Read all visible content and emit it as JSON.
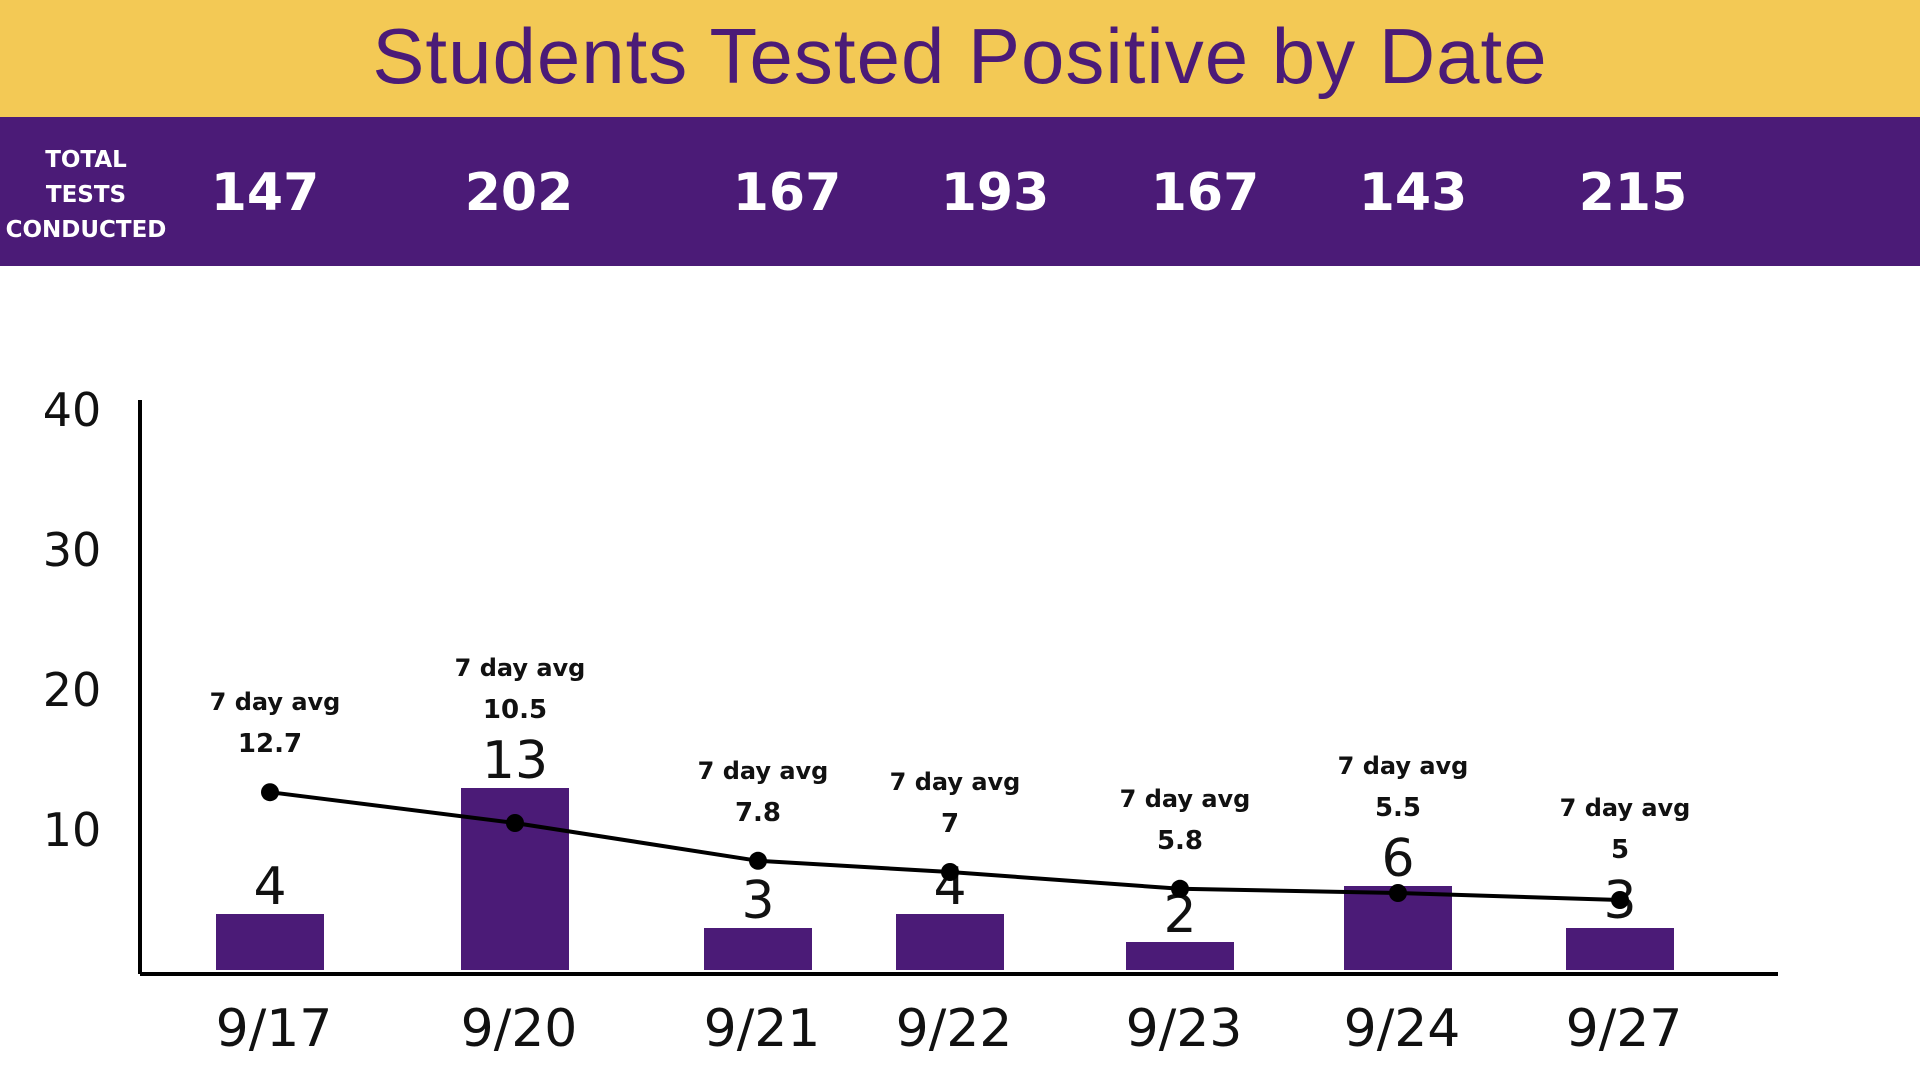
{
  "title": "Students Tested Positive by Date",
  "totals_label": [
    "TOTAL",
    "TESTS",
    "CONDUCTED"
  ],
  "totals": [
    "147",
    "202",
    "167",
    "193",
    "167",
    "143",
    "215"
  ],
  "avg_caption": "7 day avg",
  "colors": {
    "banner": "#F3C955",
    "band": "#4B1B77",
    "bar": "#4B1B77",
    "line": "#000000"
  },
  "chart_data": {
    "type": "bar",
    "categories": [
      "9/17",
      "9/20",
      "9/21",
      "9/22",
      "9/23",
      "9/24",
      "9/27"
    ],
    "series": [
      {
        "values": [
          4,
          13,
          3,
          4,
          2,
          6,
          3
        ]
      },
      {
        "values": [
          12.7,
          10.5,
          7.8,
          7,
          5.8,
          5.5,
          5
        ]
      }
    ],
    "value_labels": [
      "4",
      "13",
      "3",
      "4",
      "2",
      "6",
      "3"
    ],
    "avg_labels": [
      "12.7",
      "10.5",
      "7.8",
      "7",
      "5.8",
      "5.5",
      "5"
    ],
    "yticks": [
      "10",
      "20",
      "30",
      "40"
    ],
    "ylim": [
      0,
      40
    ],
    "grid": false,
    "legend": "none"
  }
}
